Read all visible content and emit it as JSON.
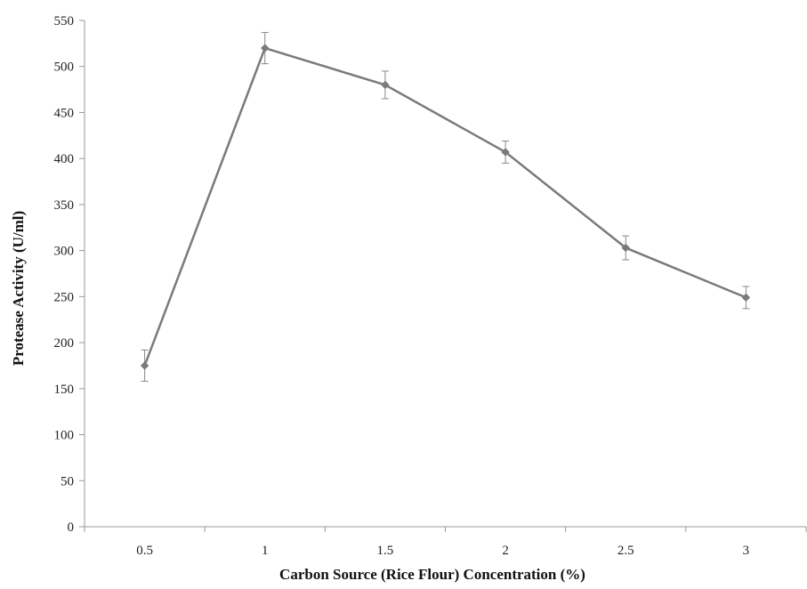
{
  "chart_data": {
    "type": "line",
    "title": "",
    "xlabel": "Carbon Source (Rice Flour) Concentration (%)",
    "ylabel": "Protease Activity (U/ml)",
    "categories": [
      "0.5",
      "1",
      "1.5",
      "2",
      "2.5",
      "3"
    ],
    "series": [
      {
        "values": [
          175,
          520,
          480,
          407,
          303,
          249
        ],
        "error": [
          17,
          17,
          15,
          12,
          13,
          12
        ],
        "color": "#7a7a7a",
        "marker": "diamond"
      }
    ],
    "ylim": [
      0,
      550
    ],
    "yticks": [
      "0",
      "50",
      "100",
      "150",
      "200",
      "250",
      "300",
      "350",
      "400",
      "450",
      "500",
      "550"
    ],
    "grid": false,
    "legend": "none",
    "axis_color": "#999999"
  }
}
